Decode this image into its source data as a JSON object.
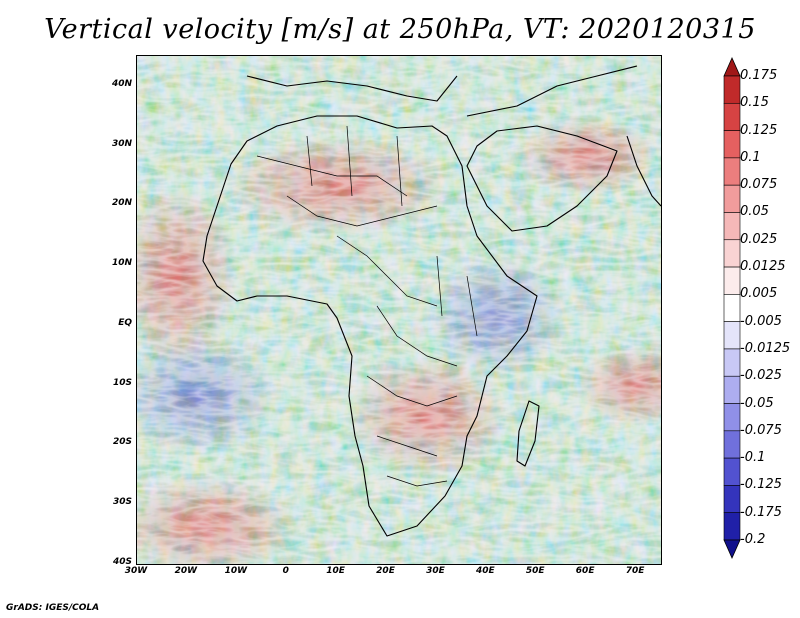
{
  "title": "Vertical velocity [m/s] at 250hPa, VT: 2020120315",
  "map": {
    "lat_labels": [
      "40N",
      "30N",
      "20N",
      "10N",
      "EQ",
      "10S",
      "20S",
      "30S",
      "40S"
    ],
    "lat_values": [
      40,
      30,
      20,
      10,
      0,
      -10,
      -20,
      -30,
      -40
    ],
    "lon_labels": [
      "30W",
      "20W",
      "10W",
      "0",
      "10E",
      "20E",
      "30E",
      "40E",
      "50E",
      "60E",
      "70E"
    ],
    "lon_values": [
      -30,
      -20,
      -10,
      0,
      10,
      20,
      30,
      40,
      50,
      60,
      70
    ],
    "lon_range": [
      -30,
      75
    ],
    "lat_range": [
      -40,
      45
    ],
    "field": "vertical velocity at 250hPa",
    "valid_time": "2020120315"
  },
  "colorbar": {
    "labels": [
      "0.175",
      "0.15",
      "0.125",
      "0.1",
      "0.075",
      "0.05",
      "0.025",
      "0.0125",
      "0.005",
      "-0.005",
      "-0.0125",
      "-0.025",
      "-0.05",
      "-0.075",
      "-0.1",
      "-0.125",
      "-0.175",
      "-0.2"
    ],
    "colors": [
      "#a01818",
      "#c02a2a",
      "#d64343",
      "#e56060",
      "#ec7e7e",
      "#f19c9c",
      "#f5b8b8",
      "#f9d3d3",
      "#fcecec",
      "#ffffff",
      "#e4e4fa",
      "#c8c8f5",
      "#adadf0",
      "#9090e8",
      "#7070dc",
      "#5252d0",
      "#3434bc",
      "#2020a8",
      "#10108c"
    ]
  },
  "footer": "GrADS: IGES/COLA"
}
